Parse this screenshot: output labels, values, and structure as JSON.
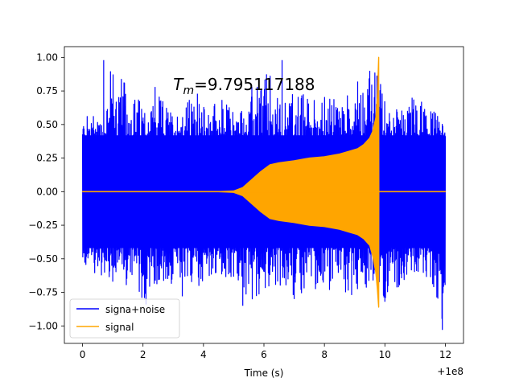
{
  "chart_data": {
    "type": "line",
    "title": "",
    "annotation": {
      "symbol": "T",
      "subscript": "m",
      "text": "=9.795117188",
      "x": 3.0,
      "y": 0.8
    },
    "xlabel": "Time (s)",
    "ylabel": "",
    "x_offset_label": "+1e8",
    "xlim": [
      -0.6,
      12.6
    ],
    "ylim": [
      -1.13,
      1.08
    ],
    "xticks": [
      0,
      2,
      4,
      6,
      8,
      10,
      12
    ],
    "xtick_labels": [
      "0",
      "2",
      "4",
      "6",
      "8",
      "10",
      "12"
    ],
    "yticks": [
      -1.0,
      -0.75,
      -0.5,
      -0.25,
      0.0,
      0.25,
      0.5,
      0.75,
      1.0
    ],
    "ytick_labels": [
      "−1.00",
      "−0.75",
      "−0.50",
      "−0.25",
      "0.00",
      "0.25",
      "0.50",
      "0.75",
      "1.00"
    ],
    "grid": false,
    "legend_position": "lower-left",
    "series": [
      {
        "name": "signa+noise",
        "color": "#0000ff",
        "description_shape": "dense noise band",
        "x": [
          0,
          0.5,
          1,
          1.5,
          2,
          2.5,
          3,
          3.5,
          4,
          4.5,
          5,
          5.5,
          6,
          6.5,
          7,
          7.5,
          8,
          8.5,
          9,
          9.5,
          9.8,
          10,
          10.5,
          11,
          11.5,
          12
        ],
        "upper": [
          0.55,
          0.62,
          0.98,
          0.78,
          0.68,
          0.72,
          0.6,
          0.7,
          0.65,
          0.72,
          0.62,
          0.66,
          0.98,
          0.7,
          0.78,
          0.72,
          0.72,
          0.68,
          0.82,
          0.9,
          0.9,
          0.7,
          0.6,
          0.72,
          0.65,
          0.5
        ],
        "lower": [
          -0.55,
          -0.62,
          -0.68,
          -0.7,
          -0.84,
          -0.72,
          -0.7,
          -0.75,
          -0.68,
          -0.65,
          -0.66,
          -0.85,
          -0.72,
          -0.7,
          -0.8,
          -0.75,
          -0.72,
          -0.78,
          -0.73,
          -0.75,
          -0.75,
          -0.82,
          -0.7,
          -0.6,
          -0.65,
          -1.03
        ]
      },
      {
        "name": "signal",
        "color": "#ffa500",
        "x": [
          0,
          4.5,
          5.0,
          5.3,
          5.6,
          5.9,
          6.2,
          6.5,
          7.0,
          7.5,
          8.0,
          8.5,
          8.8,
          9.1,
          9.3,
          9.5,
          9.6,
          9.7,
          9.75,
          9.795,
          9.8,
          10,
          12
        ],
        "upper": [
          0.0,
          0.0,
          0.005,
          0.03,
          0.09,
          0.15,
          0.2,
          0.215,
          0.23,
          0.25,
          0.26,
          0.28,
          0.3,
          0.32,
          0.35,
          0.4,
          0.45,
          0.55,
          0.7,
          1.0,
          0.0,
          0.0,
          0.0
        ],
        "lower": [
          0.0,
          0.0,
          -0.005,
          -0.03,
          -0.09,
          -0.15,
          -0.2,
          -0.215,
          -0.23,
          -0.25,
          -0.26,
          -0.28,
          -0.3,
          -0.32,
          -0.35,
          -0.4,
          -0.48,
          -0.6,
          -0.72,
          -0.86,
          0.0,
          0.0,
          0.0
        ]
      }
    ],
    "spikes": {
      "up": [
        [
          0.7,
          0.98
        ],
        [
          2.4,
          0.78
        ],
        [
          3.8,
          0.73
        ],
        [
          5.6,
          0.78
        ],
        [
          6.6,
          0.98
        ],
        [
          7.3,
          0.7
        ],
        [
          9.1,
          0.82
        ],
        [
          9.5,
          0.9
        ],
        [
          10.9,
          0.7
        ]
      ],
      "down": [
        [
          1.0,
          -0.67
        ],
        [
          2.1,
          -0.84
        ],
        [
          3.3,
          -0.78
        ],
        [
          5.3,
          -0.85
        ],
        [
          7.0,
          -0.8
        ],
        [
          8.9,
          -0.77
        ],
        [
          10.0,
          -0.82
        ],
        [
          11.9,
          -1.03
        ]
      ]
    }
  }
}
